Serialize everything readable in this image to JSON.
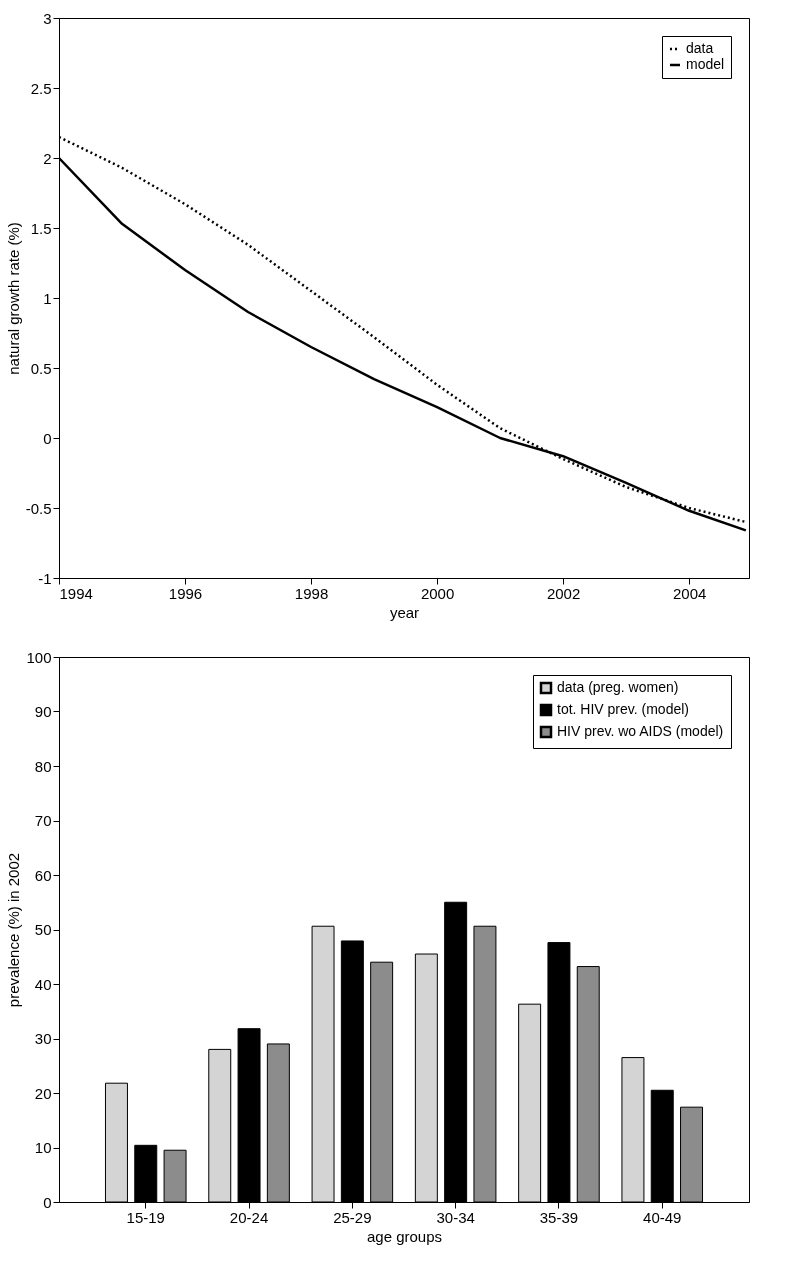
{
  "chart_data": [
    {
      "type": "line",
      "xlabel": "year",
      "ylabel": "natural growth rate (%)",
      "xlim": [
        1994,
        2004.95
      ],
      "ylim": [
        -1,
        3
      ],
      "xticks": [
        1994,
        1996,
        1998,
        2000,
        2002,
        2004
      ],
      "yticks": [
        -1,
        -0.5,
        0,
        0.5,
        1,
        1.5,
        2,
        2.5,
        3
      ],
      "grid": false,
      "legend": "top right",
      "series": [
        {
          "name": "data",
          "color": "#000000",
          "line_style": "dotted",
          "x": [
            1994,
            1995,
            1996,
            1997,
            1998,
            1999,
            2000,
            2001,
            2002,
            2003,
            2004,
            2004.9
          ],
          "values": [
            2.15,
            1.93,
            1.67,
            1.38,
            1.05,
            0.72,
            0.38,
            0.07,
            -0.15,
            -0.35,
            -0.5,
            -0.6
          ]
        },
        {
          "name": "model",
          "color": "#000000",
          "line_style": "solid",
          "x": [
            1994,
            1995,
            1996,
            1997,
            1998,
            1999,
            2000,
            2001,
            2002,
            2003,
            2004,
            2004.9
          ],
          "values": [
            2.0,
            1.53,
            1.2,
            0.9,
            0.65,
            0.42,
            0.22,
            0.0,
            -0.13,
            -0.32,
            -0.52,
            -0.66
          ]
        }
      ]
    },
    {
      "type": "bar",
      "xlabel": "age groups",
      "ylabel": "prevalence (%) in 2002",
      "categories": [
        "15-19",
        "20-24",
        "25-29",
        "30-34",
        "35-39",
        "40-49"
      ],
      "ylim": [
        0,
        100
      ],
      "yticks": [
        0,
        10,
        20,
        30,
        40,
        50,
        60,
        70,
        80,
        90,
        100
      ],
      "grid": false,
      "legend": "top right",
      "series": [
        {
          "name": "data (preg. women)",
          "color": "#d4d4d4",
          "values": [
            21.8,
            28,
            50.6,
            45.5,
            36.3,
            26.5
          ]
        },
        {
          "name": "tot. HIV prev. (model)",
          "color": "#000000",
          "values": [
            10.4,
            31.8,
            47.9,
            55,
            47.6,
            20.5
          ]
        },
        {
          "name": "HIV prev. wo AIDS (model)",
          "color": "#8c8c8c",
          "values": [
            9.5,
            29,
            44,
            50.6,
            43.2,
            17.4
          ]
        }
      ]
    }
  ]
}
